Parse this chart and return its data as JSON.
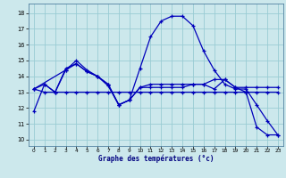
{
  "bg_color": "#cce8ec",
  "grid_color": "#99ccd4",
  "line_color": "#0000bb",
  "xlabel": "Graphe des températures (°c)",
  "x_ticks": [
    0,
    1,
    2,
    3,
    4,
    5,
    6,
    7,
    8,
    9,
    10,
    11,
    12,
    13,
    14,
    15,
    16,
    17,
    18,
    19,
    20,
    21,
    22,
    23
  ],
  "y_ticks": [
    10,
    11,
    12,
    13,
    14,
    15,
    16,
    17,
    18
  ],
  "ylim": [
    9.6,
    18.6
  ],
  "xlim": [
    -0.5,
    23.5
  ],
  "series1_x": [
    0,
    1,
    2,
    3,
    4,
    5,
    6,
    7,
    8,
    9,
    10,
    11,
    12,
    13,
    14,
    15,
    16,
    17,
    18,
    19,
    20,
    21,
    22,
    23
  ],
  "series1_y": [
    11.8,
    13.5,
    13.0,
    14.4,
    15.0,
    14.4,
    14.0,
    13.4,
    12.2,
    12.5,
    14.5,
    16.5,
    17.5,
    17.8,
    17.8,
    17.2,
    15.6,
    14.4,
    13.5,
    13.2,
    13.2,
    12.2,
    11.2,
    10.3
  ],
  "series2_x": [
    0,
    1,
    2,
    3,
    4,
    5,
    6,
    7,
    8,
    9,
    10,
    11,
    12,
    13,
    14,
    15,
    16,
    17,
    18,
    19,
    20,
    21,
    22,
    23
  ],
  "series2_y": [
    13.2,
    13.0,
    13.0,
    13.0,
    13.0,
    13.0,
    13.0,
    13.0,
    13.0,
    13.0,
    13.0,
    13.0,
    13.0,
    13.0,
    13.0,
    13.0,
    13.0,
    13.0,
    13.0,
    13.0,
    13.0,
    13.0,
    13.0,
    13.0
  ],
  "series3_x": [
    0,
    1,
    2,
    3,
    4,
    5,
    6,
    7,
    8,
    9,
    10,
    11,
    12,
    13,
    14,
    15,
    16,
    17,
    18,
    19,
    20,
    21,
    22,
    23
  ],
  "series3_y": [
    13.2,
    13.5,
    13.0,
    14.5,
    14.8,
    14.3,
    14.0,
    13.5,
    12.2,
    12.5,
    13.3,
    13.3,
    13.3,
    13.3,
    13.3,
    13.5,
    13.5,
    13.8,
    13.8,
    13.3,
    13.3,
    13.3,
    13.3,
    13.3
  ],
  "series4_x": [
    0,
    3,
    4,
    5,
    6,
    7,
    8,
    9,
    10,
    11,
    12,
    13,
    14,
    15,
    16,
    17,
    18,
    19,
    20,
    21,
    22,
    23
  ],
  "series4_y": [
    13.2,
    14.4,
    14.8,
    14.3,
    14.0,
    13.5,
    12.2,
    12.5,
    13.3,
    13.5,
    13.5,
    13.5,
    13.5,
    13.5,
    13.5,
    13.2,
    13.8,
    13.3,
    13.0,
    10.8,
    10.3,
    10.3
  ]
}
